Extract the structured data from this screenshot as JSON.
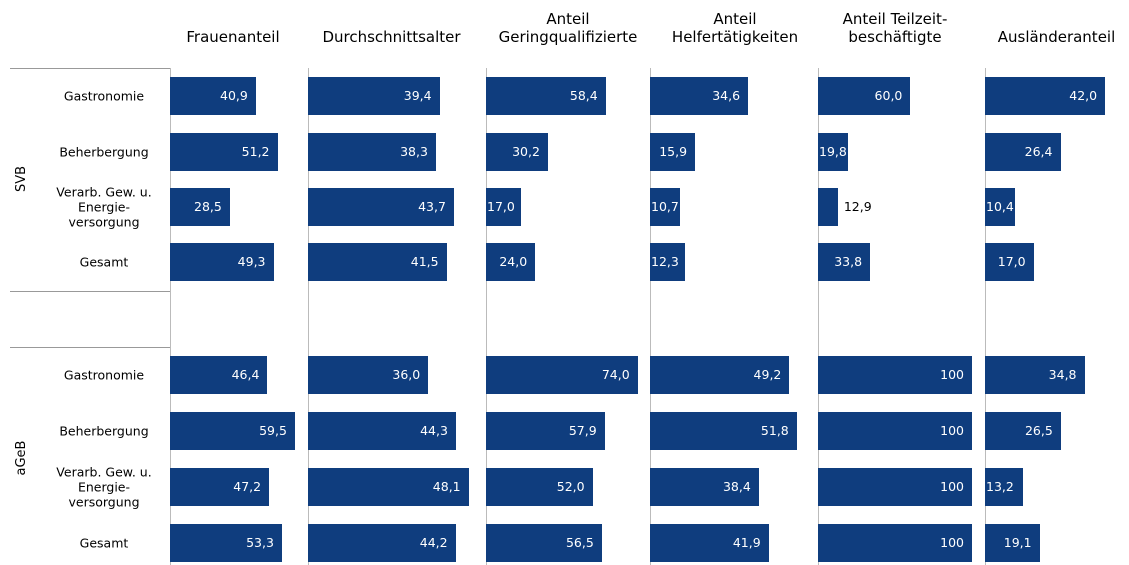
{
  "groups": [
    {
      "name": "SVB",
      "categories": [
        "Gastronomie",
        "Beherbergung",
        "Verarb. Gew. u.\nEnergie-\nversorgung",
        "Gesamt"
      ]
    },
    {
      "name": "aGeB",
      "categories": [
        "Gastronomie",
        "Beherbergung",
        "Verarb. Gew. u.\nEnergie-\nversorgung",
        "Gesamt"
      ]
    }
  ],
  "chart_data": [
    {
      "type": "bar",
      "title": "Frauenanteil",
      "color": "#0f3d7e",
      "xlim": [
        0,
        60
      ],
      "values": [
        40.9,
        51.2,
        28.5,
        49.3,
        46.4,
        59.5,
        47.2,
        53.3
      ],
      "value_labels": [
        "40,9",
        "51,2",
        "28,5",
        "49,3",
        "46,4",
        "59,5",
        "47,2",
        "53,3"
      ]
    },
    {
      "type": "bar",
      "title": "Durchschnittsalter",
      "color": "#0f3d7e",
      "xlim": [
        0,
        50
      ],
      "values": [
        39.4,
        38.3,
        43.7,
        41.5,
        36.0,
        44.3,
        48.1,
        44.2
      ],
      "value_labels": [
        "39,4",
        "38,3",
        "43,7",
        "41,5",
        "36,0",
        "44,3",
        "48,1",
        "44,2"
      ]
    },
    {
      "type": "bar",
      "title": "Anteil\nGeringqualifizierte",
      "color": "#0f3d7e",
      "xlim": [
        0,
        80
      ],
      "values": [
        58.4,
        30.2,
        17.0,
        24.0,
        74.0,
        57.9,
        52.0,
        56.5
      ],
      "value_labels": [
        "58,4",
        "30,2",
        "17,0",
        "24,0",
        "74,0",
        "57,9",
        "52,0",
        "56,5"
      ]
    },
    {
      "type": "bar",
      "title": "Anteil\nHelfertätigkeiten",
      "color": "#0f3d7e",
      "xlim": [
        0,
        60
      ],
      "values": [
        34.6,
        15.9,
        10.7,
        12.3,
        49.2,
        51.8,
        38.4,
        41.9
      ],
      "value_labels": [
        "34,6",
        "15,9",
        "10,7",
        "12,3",
        "49,2",
        "51,8",
        "38,4",
        "41,9"
      ]
    },
    {
      "type": "bar",
      "title": "Anteil Teilzeit-\nbeschäftigte",
      "color": "#0f3d7e",
      "xlim": [
        0,
        100
      ],
      "values": [
        60.0,
        19.8,
        12.9,
        33.8,
        100,
        100,
        100,
        100
      ],
      "value_labels": [
        "60,0",
        "19,8",
        "12,9",
        "33,8",
        "100",
        "100",
        "100",
        "100"
      ]
    },
    {
      "type": "bar",
      "title": "Ausländeranteil",
      "color": "#0f3d7e",
      "xlim": [
        0,
        50
      ],
      "values": [
        42.0,
        26.4,
        10.4,
        17.0,
        34.8,
        26.5,
        13.2,
        19.1
      ],
      "value_labels": [
        "42,0",
        "26,4",
        "10,4",
        "17,0",
        "34,8",
        "26,5",
        "13,2",
        "19,1"
      ]
    }
  ]
}
